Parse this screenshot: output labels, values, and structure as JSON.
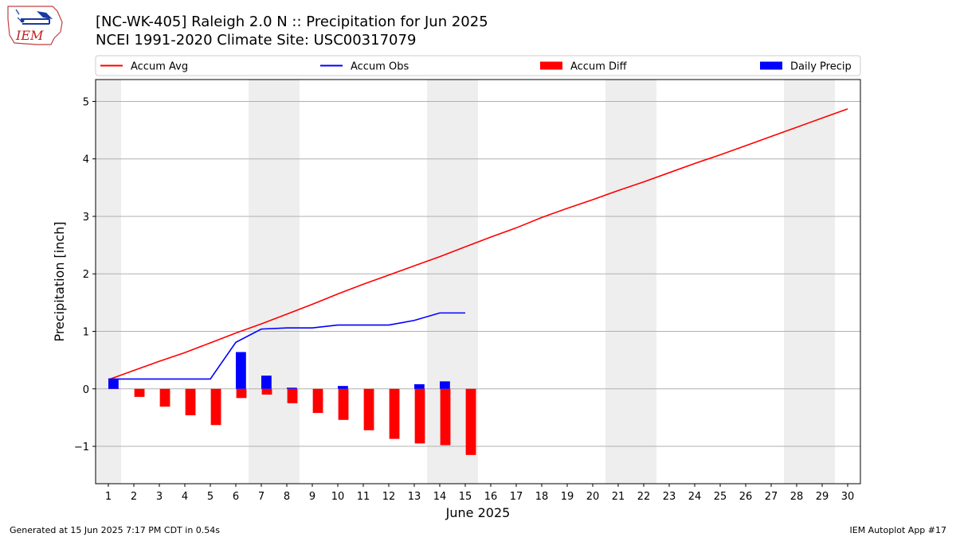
{
  "header": {
    "title_line1": "[NC-WK-405] Raleigh 2.0 N :: Precipitation for Jun 2025",
    "title_line2": "NCEI 1991-2020 Climate Site: USC00317079",
    "logo_text": "IEM"
  },
  "footer": {
    "generated": "Generated at 15 Jun 2025 7:17 PM CDT in 0.54s",
    "app": "IEM Autoplot App #17"
  },
  "colors": {
    "avg": "#ff0000",
    "obs": "#0000ff",
    "diff": "#ff0000",
    "daily": "#0000ff",
    "weekend_shade": "#eeeeee",
    "grid": "#b0b0b0"
  },
  "chart_data": {
    "type": "bar",
    "xlabel": "June 2025",
    "ylabel": "Precipitation [inch]",
    "xlim": [
      0.5,
      30.5
    ],
    "ylim": [
      -1.65,
      5.38
    ],
    "yticks": [
      -1,
      0,
      1,
      2,
      3,
      4,
      5
    ],
    "xticks": [
      1,
      2,
      3,
      4,
      5,
      6,
      7,
      8,
      9,
      10,
      11,
      12,
      13,
      14,
      15,
      16,
      17,
      18,
      19,
      20,
      21,
      22,
      23,
      24,
      25,
      26,
      27,
      28,
      29,
      30
    ],
    "grid": "horizontal",
    "legend_placement": "top, above plot",
    "legend": [
      "Accum Avg",
      "Accum Obs",
      "Accum Diff",
      "Daily Precip"
    ],
    "weekend_shading_days": [
      1,
      7,
      8,
      14,
      15,
      21,
      22,
      28,
      29
    ],
    "series": [
      {
        "name": "Accum Avg",
        "type": "line",
        "x": [
          1,
          2,
          3,
          4,
          5,
          6,
          7,
          8,
          9,
          10,
          11,
          12,
          13,
          14,
          15,
          16,
          17,
          18,
          19,
          20,
          21,
          22,
          23,
          24,
          25,
          26,
          27,
          28,
          29,
          30
        ],
        "values": [
          0.16,
          0.32,
          0.48,
          0.63,
          0.8,
          0.97,
          1.13,
          1.3,
          1.47,
          1.65,
          1.82,
          1.98,
          2.14,
          2.3,
          2.47,
          2.64,
          2.8,
          2.98,
          3.14,
          3.29,
          3.45,
          3.6,
          3.76,
          3.92,
          4.07,
          4.23,
          4.39,
          4.55,
          4.71,
          4.87
        ]
      },
      {
        "name": "Accum Obs",
        "type": "line",
        "x": [
          1,
          2,
          3,
          4,
          5,
          6,
          7,
          8,
          9,
          10,
          11,
          12,
          13,
          14,
          15
        ],
        "values": [
          0.17,
          0.17,
          0.17,
          0.17,
          0.17,
          0.81,
          1.04,
          1.06,
          1.06,
          1.11,
          1.11,
          1.11,
          1.19,
          1.32,
          1.32
        ]
      },
      {
        "name": "Accum Diff",
        "type": "bar",
        "x": [
          1,
          2,
          3,
          4,
          5,
          6,
          7,
          8,
          9,
          10,
          11,
          12,
          13,
          14,
          15
        ],
        "values": [
          0.01,
          -0.14,
          -0.31,
          -0.46,
          -0.63,
          -0.16,
          -0.1,
          -0.25,
          -0.42,
          -0.54,
          -0.72,
          -0.87,
          -0.95,
          -0.98,
          -1.15
        ]
      },
      {
        "name": "Daily Precip",
        "type": "bar",
        "x": [
          1,
          2,
          3,
          4,
          5,
          6,
          7,
          8,
          9,
          10,
          11,
          12,
          13,
          14,
          15
        ],
        "values": [
          0.17,
          0,
          0,
          0,
          0,
          0.64,
          0.23,
          0.02,
          0,
          0.05,
          0,
          0,
          0.08,
          0.13,
          0
        ]
      }
    ]
  }
}
